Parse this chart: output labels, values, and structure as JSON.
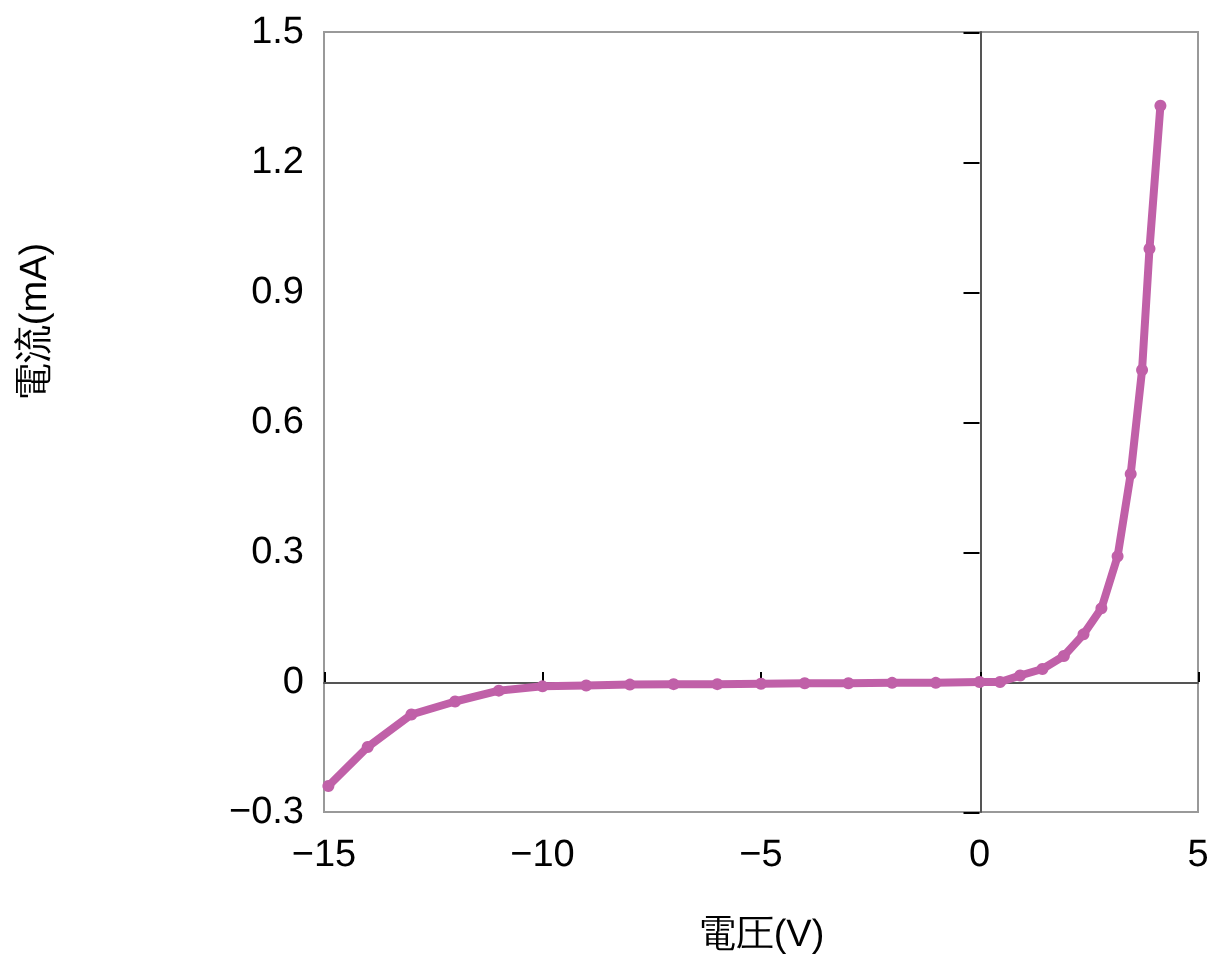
{
  "chart_data": {
    "type": "line",
    "xlabel": "電圧(V)",
    "ylabel": "電流(mA)",
    "x": [
      -14.9,
      -14,
      -13,
      -12,
      -11,
      -10,
      -9,
      -8,
      -7,
      -6,
      -5,
      -4,
      -3,
      -2,
      -1,
      0,
      0.47,
      0.93,
      1.44,
      1.93,
      2.38,
      2.79,
      3.16,
      3.46,
      3.72,
      3.89,
      4.14
    ],
    "series": [
      {
        "color": "#c060a8",
        "values": [
          -0.24,
          -0.15,
          -0.075,
          -0.045,
          -0.02,
          -0.01,
          -0.008,
          -0.006,
          -0.005,
          -0.005,
          -0.004,
          -0.003,
          -0.003,
          -0.002,
          -0.002,
          0,
          0,
          0.015,
          0.03,
          0.06,
          0.11,
          0.17,
          0.29,
          0.48,
          0.72,
          1.0,
          1.33
        ]
      }
    ],
    "xlim": [
      -15,
      5
    ],
    "xticks": [
      -15,
      -10,
      -5,
      0,
      5
    ],
    "ylim": [
      -0.3,
      1.5
    ],
    "yticks": [
      {
        "value": -0.3,
        "label": "−0.3"
      },
      0,
      0.3,
      0.6,
      0.9,
      1.2,
      1.5
    ],
    "marker": "circle",
    "line_style": "solid"
  }
}
